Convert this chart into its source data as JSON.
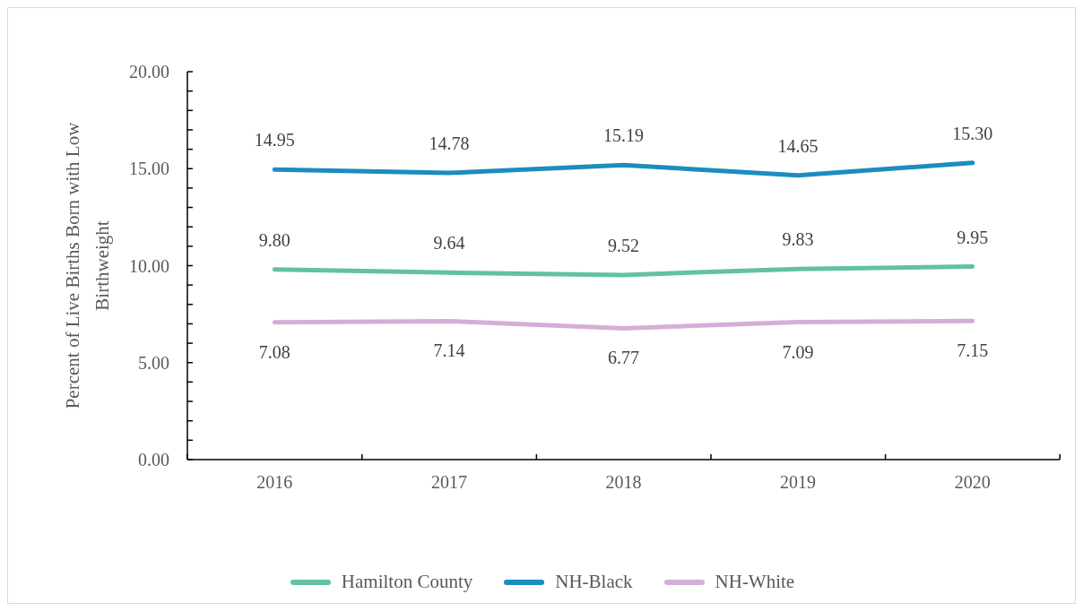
{
  "chart_data": {
    "type": "line",
    "ylabel": "Percent of Live Births Born with Low Birthweight",
    "categories": [
      "2016",
      "2017",
      "2018",
      "2019",
      "2020"
    ],
    "series": [
      {
        "name": "Hamilton County",
        "color": "#62c29e",
        "values": [
          9.8,
          9.64,
          9.52,
          9.83,
          9.95
        ],
        "value_labels": [
          "9.80",
          "9.64",
          "9.52",
          "9.83",
          "9.95"
        ]
      },
      {
        "name": "NH-Black",
        "color": "#1b8dbf",
        "values": [
          14.95,
          14.78,
          15.19,
          14.65,
          15.3
        ],
        "value_labels": [
          "14.95",
          "14.78",
          "15.19",
          "14.65",
          "15.30"
        ]
      },
      {
        "name": "NH-White",
        "color": "#d3afd6",
        "values": [
          7.08,
          7.14,
          6.77,
          7.09,
          7.15
        ],
        "value_labels": [
          "7.08",
          "7.14",
          "6.77",
          "7.09",
          "7.15"
        ]
      }
    ],
    "ylim": [
      0,
      20
    ],
    "yticks": [
      {
        "value": 0,
        "label": "0.00"
      },
      {
        "value": 1,
        "label": null
      },
      {
        "value": 2,
        "label": null
      },
      {
        "value": 3,
        "label": null
      },
      {
        "value": 4,
        "label": null
      },
      {
        "value": 5,
        "label": "5.00"
      },
      {
        "value": 6,
        "label": null
      },
      {
        "value": 7,
        "label": null
      },
      {
        "value": 8,
        "label": null
      },
      {
        "value": 9,
        "label": null
      },
      {
        "value": 10,
        "label": "10.00"
      },
      {
        "value": 11,
        "label": null
      },
      {
        "value": 12,
        "label": null
      },
      {
        "value": 13,
        "label": null
      },
      {
        "value": 14,
        "label": null
      },
      {
        "value": 15,
        "label": "15.00"
      },
      {
        "value": 16,
        "label": null
      },
      {
        "value": 17,
        "label": null
      },
      {
        "value": 18,
        "label": null
      },
      {
        "value": 19,
        "label": null
      },
      {
        "value": 20,
        "label": "20.00"
      }
    ],
    "legend": "bottom",
    "marker": "none",
    "line_style": "solid"
  }
}
